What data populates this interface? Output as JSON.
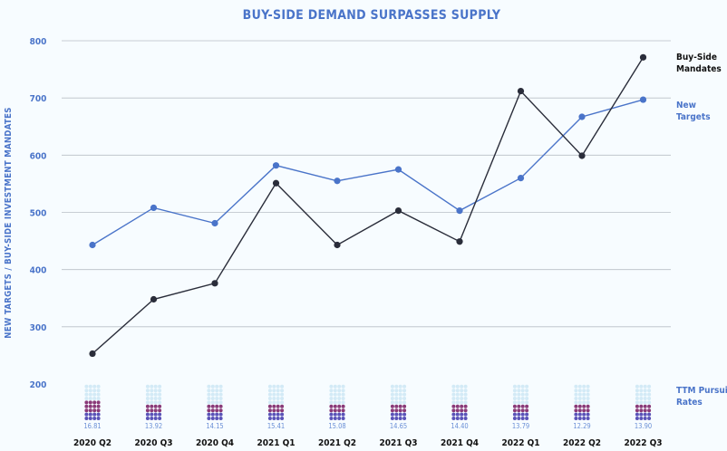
{
  "chart_data": {
    "type": "line",
    "title": "BUY-SIDE DEMAND SURPASSES SUPPLY",
    "ylabel": "NEW TARGETS / BUY-SIDE INVESTMENT MANDATES",
    "ylim": [
      200,
      800
    ],
    "yticks": [
      200,
      300,
      400,
      500,
      600,
      700,
      800
    ],
    "grid": true,
    "legend_position": "right",
    "categories": [
      "2020 Q2",
      "2020 Q3",
      "2020 Q4",
      "2021 Q1",
      "2021 Q2",
      "2021 Q3",
      "2021 Q4",
      "2022 Q1",
      "2022 Q2",
      "2022 Q3"
    ],
    "series": [
      {
        "name": "Buy-Side Mandates",
        "legend_lines": [
          "Buy-Side",
          "Mandates"
        ],
        "color": "#2a2d3a",
        "values": [
          253,
          348,
          376,
          551,
          443,
          503,
          449,
          712,
          599,
          771
        ]
      },
      {
        "name": "New Targets",
        "legend_lines": [
          "New",
          "Targets"
        ],
        "color": "#4a74c9",
        "values": [
          443,
          508,
          481,
          582,
          555,
          575,
          503,
          560,
          667,
          697
        ]
      }
    ],
    "pursuit_rates": {
      "name": "TTM Pursuit Rates",
      "legend_lines": [
        "TTM Pursuit",
        "Rates"
      ],
      "values": [
        "16.81",
        "13.92",
        "14.15",
        "15.41",
        "15.08",
        "14.65",
        "14.40",
        "13.79",
        "12.29",
        "13.90"
      ],
      "colors": {
        "empty": "#d3eaf6",
        "top": "#8a3a78",
        "bottom": "#5a52b8"
      }
    }
  }
}
